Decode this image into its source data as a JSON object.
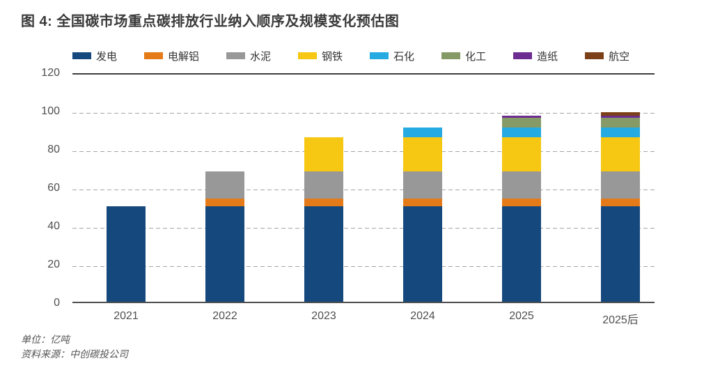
{
  "title": "图 4: 全国碳市场重点碳排放行业纳入顺序及规模变化预估图",
  "footer": {
    "unit_label": "单位：亿吨",
    "source_label": "资料来源：中创碳投公司"
  },
  "chart_data": {
    "type": "bar",
    "stacked": true,
    "title": "全国碳市场重点碳排放行业纳入顺序及规模变化预估图",
    "unit": "亿吨",
    "categories": [
      "2021",
      "2022",
      "2023",
      "2024",
      "2025",
      "2025后"
    ],
    "series": [
      {
        "name": "发电",
        "color": "#15497d",
        "values": [
          50,
          50,
          50,
          50,
          50,
          50
        ]
      },
      {
        "name": "电解铝",
        "color": "#e57a19",
        "values": [
          0,
          4,
          4,
          4,
          4,
          4
        ]
      },
      {
        "name": "水泥",
        "color": "#989898",
        "values": [
          0,
          14,
          14,
          14,
          14,
          14
        ]
      },
      {
        "name": "钢铁",
        "color": "#f6c713",
        "values": [
          0,
          0,
          18,
          18,
          18,
          18
        ]
      },
      {
        "name": "石化",
        "color": "#25aae1",
        "values": [
          0,
          0,
          0,
          5,
          5,
          5
        ]
      },
      {
        "name": "化工",
        "color": "#869a68",
        "values": [
          0,
          0,
          0,
          0,
          5,
          5
        ]
      },
      {
        "name": "造纸",
        "color": "#6c2d90",
        "values": [
          0,
          0,
          0,
          0,
          1,
          1
        ]
      },
      {
        "name": "航空",
        "color": "#7c4019",
        "values": [
          0,
          0,
          0,
          0,
          0,
          2
        ]
      }
    ],
    "totals": [
      50,
      68,
      86,
      91,
      97,
      99
    ],
    "ylim": [
      0,
      120
    ],
    "yticks": [
      0,
      20,
      40,
      60,
      80,
      100,
      120
    ],
    "grid": "horizontal-dashed",
    "legend_position": "top"
  }
}
